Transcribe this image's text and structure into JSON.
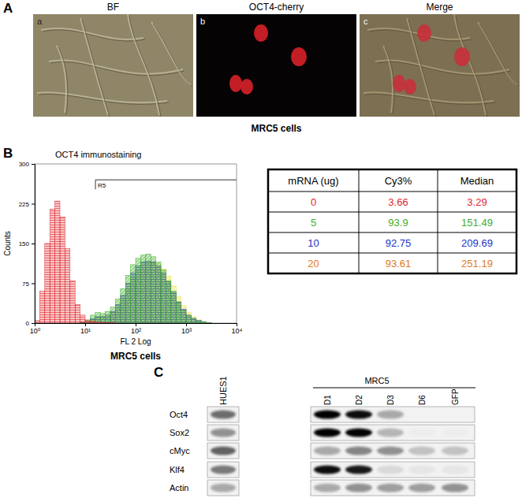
{
  "panel_a": {
    "label": "A",
    "caption": "MRC5 cells",
    "images": [
      {
        "letter": "a",
        "title": "BF"
      },
      {
        "letter": "b",
        "title": "OCT4-cherry"
      },
      {
        "letter": "c",
        "title": "Merge"
      }
    ]
  },
  "panel_b": {
    "label": "B",
    "caption": "MRC5 cells"
  },
  "chart_data": {
    "type": "histogram",
    "title": "OCT4 immunostaining",
    "x_label": "FL 2 Log",
    "y_label": "Counts",
    "log": "x",
    "bins": [
      1,
      1.259,
      1.585,
      1.995,
      2.512,
      3.162,
      3.981,
      5.012,
      6.31,
      7.943,
      10,
      12.59,
      15.85,
      19.95,
      25.12,
      31.62,
      39.81,
      50.12,
      63.1,
      79.43,
      100,
      125.9,
      158.5,
      199.5,
      251.2,
      316.2,
      398.1,
      501.2,
      631,
      794.3,
      1000,
      1259,
      1585,
      1995,
      2512,
      3162,
      3981,
      5012,
      6310,
      7943,
      10000
    ],
    "series": [
      {
        "color": "#e0262c",
        "values": [
          5,
          60,
          150,
          215,
          230,
          200,
          140,
          80,
          35,
          15,
          6,
          3,
          2,
          1,
          1,
          1,
          0,
          0,
          0,
          0,
          0,
          0,
          0,
          0,
          0,
          0,
          0,
          0,
          0,
          0,
          0,
          0,
          0,
          0,
          0,
          0,
          0,
          0,
          0,
          0
        ]
      },
      {
        "color": "#3fae2a",
        "values": [
          0,
          0,
          0,
          0,
          0,
          0,
          0,
          0,
          0,
          2,
          5,
          15,
          20,
          18,
          22,
          30,
          45,
          65,
          90,
          110,
          122,
          128,
          130,
          125,
          115,
          100,
          80,
          60,
          40,
          25,
          14,
          8,
          4,
          2,
          1,
          0,
          0,
          0,
          0,
          0
        ]
      },
      {
        "color": "#2232c8",
        "values": [
          0,
          0,
          0,
          0,
          0,
          0,
          0,
          0,
          0,
          1,
          3,
          8,
          12,
          12,
          15,
          22,
          35,
          52,
          75,
          95,
          108,
          115,
          117,
          115,
          108,
          95,
          78,
          58,
          40,
          26,
          15,
          9,
          5,
          2,
          1,
          0,
          0,
          0,
          0,
          0
        ]
      },
      {
        "color": "#e8e03a",
        "values": [
          0,
          0,
          0,
          0,
          0,
          0,
          0,
          0,
          0,
          1,
          2,
          6,
          10,
          12,
          14,
          20,
          30,
          45,
          65,
          85,
          100,
          110,
          115,
          115,
          112,
          102,
          88,
          70,
          50,
          33,
          20,
          12,
          6,
          3,
          1,
          0,
          0,
          0,
          0,
          0
        ]
      }
    ],
    "xlim": [
      1,
      10000
    ],
    "xticks": [
      {
        "value": 1,
        "label": "10⁰"
      },
      {
        "value": 10,
        "label": "10¹"
      },
      {
        "value": 100,
        "label": "10²"
      },
      {
        "value": 1000,
        "label": "10³"
      },
      {
        "value": 10000,
        "label": "10⁴"
      }
    ],
    "ylim": [
      0,
      300
    ],
    "yticks": [
      0,
      75,
      150,
      225,
      300
    ],
    "gate": {
      "label": "R5",
      "start": 16,
      "end": 10000,
      "level": 270
    }
  },
  "table": {
    "header": [
      "mRNA (ug)",
      "Cy3%",
      "Median"
    ],
    "rows": [
      [
        0,
        3.66,
        3.29
      ],
      [
        5,
        93.9,
        151.49
      ],
      [
        10,
        92.75,
        209.69
      ],
      [
        20,
        93.61,
        251.19
      ]
    ],
    "row_colors": [
      "#e0262c",
      "#3fae2a",
      "#2232c8",
      "#e07a1c"
    ]
  },
  "panel_c": {
    "label": "C",
    "reference_lane": "HUES1",
    "group": "MRC5",
    "lanes": [
      "D1",
      "D2",
      "D3",
      "D6",
      "GFP"
    ],
    "proteins": [
      "Oct4",
      "Sox2",
      "cMyc",
      "Klf4",
      "Actin"
    ],
    "band_intensity": [
      [
        0.55,
        1.0,
        0.95,
        0.3,
        0,
        0
      ],
      [
        0.4,
        1.0,
        1.0,
        0.25,
        0.02,
        0.02
      ],
      [
        0.6,
        0.3,
        0.45,
        0.4,
        0.2,
        0.2
      ],
      [
        0.5,
        0.95,
        0.9,
        0.1,
        0.05,
        0.05
      ],
      [
        0.3,
        0.3,
        0.4,
        0.35,
        0.35,
        0.4
      ]
    ]
  }
}
